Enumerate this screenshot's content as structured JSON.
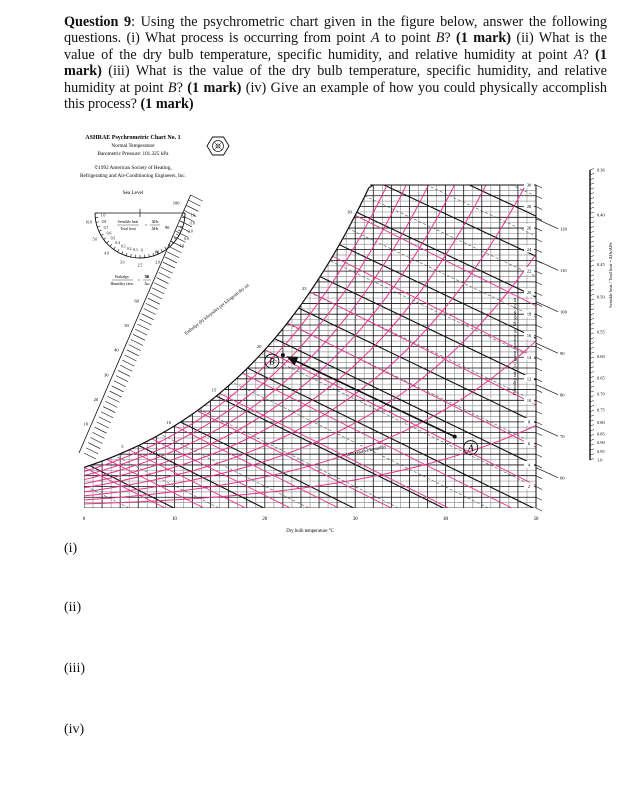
{
  "question": {
    "number_label": "Question 9",
    "intro": ": Using the psychrometric chart given in the figure below, answer the following questions. ",
    "parts": [
      {
        "id": "i",
        "prefix": "(i) ",
        "text_before": "What process is occurring from point ",
        "var1": "A",
        "text_mid": " to point ",
        "var2": "B",
        "text_after": "? ",
        "marks": "(1 mark)"
      },
      {
        "id": "ii",
        "prefix": " (ii) ",
        "text_before": "What is the value of the dry bulb temperature, specific humidity, and relative humidity at point ",
        "var1": "A",
        "text_after": "? ",
        "marks": "(1 mark)"
      },
      {
        "id": "iii",
        "prefix": " (iii) ",
        "text_before": "What is the value of the dry bulb temperature, specific humidity, and relative humidity at point ",
        "var1": "B",
        "text_after": "? ",
        "marks": "(1 mark)"
      },
      {
        "id": "iv",
        "prefix": " (iv) ",
        "text_before": "Give an example of how you could physically accomplish this process? ",
        "marks": "(1 mark)"
      }
    ]
  },
  "chart_header": {
    "title": "ASHRAE Psychrometric Chart No. 1",
    "subtitle1": "Normal Temperature",
    "subtitle2": "Barometric Pressure: 101.325 kPa",
    "copyright1": "©1992 American Society of Heating,",
    "copyright2": "Refrigerating and Air-Conditioning Engineers, Inc.",
    "sea_level": "Sea Level"
  },
  "protractor": {
    "shr_label_num": "Sensible heat",
    "shr_label_den": "Total heat",
    "shr_eq_num": "ΔHs",
    "shr_eq_den": "ΔHт",
    "ehr_label_num": "Enthalpy",
    "ehr_label_den": "Humidity ratio",
    "ehr_eq_num": "Δh",
    "ehr_eq_den": "Δω",
    "left_ticks": [
      "1.0",
      "0.8",
      "0.7",
      "0.6",
      "0.5",
      "0.4",
      "0.3",
      "0.2",
      "0.1",
      "0"
    ],
    "right_ticks": [
      "1.0",
      "-5.0",
      "-2.0",
      "0.0",
      "1.0"
    ],
    "outer_ticks": [
      "10.0",
      "5.0",
      "4.0",
      "3.0",
      "2.5",
      "2.0"
    ]
  },
  "chart_data": {
    "type": "psychrometric",
    "title": "ASHRAE Psychrometric Chart No. 1",
    "xlabel": "Dry bulb temperature °C",
    "ylabel": "Humidity ratio (ω) grams moisture per kilogram dry air",
    "x_ticks": [
      0,
      10,
      20,
      30,
      40,
      50
    ],
    "xlim": [
      0,
      50
    ],
    "y_ticks_right": [
      2,
      4,
      6,
      8,
      10,
      12,
      14,
      16,
      18,
      20,
      22,
      24,
      26,
      28,
      30
    ],
    "ylim": [
      0,
      30
    ],
    "enthalpy_label": "Enthalpy (h) kilojoules per kilogram dry air",
    "enthalpy_ticks_left": [
      10,
      20,
      30,
      40,
      50,
      60,
      70,
      80,
      90,
      100
    ],
    "enthalpy_ticks_right": [
      60,
      70,
      80,
      90,
      100,
      110,
      120
    ],
    "wet_bulb_label": "Saturation temperature °C",
    "wet_bulb_ticks": [
      5,
      10,
      15,
      20,
      25,
      30
    ],
    "rh_curves_percent": [
      10,
      20,
      30,
      40,
      50,
      60,
      70,
      80,
      90,
      100
    ],
    "rh_label": "10% relative humidity",
    "specific_volume_label": "cubic meter per kilogram dry air",
    "specific_volume_ticks": [
      0.78,
      0.8,
      0.82,
      0.84,
      0.86,
      0.88,
      0.9,
      0.92,
      0.94
    ],
    "shr_scale_label": "Sensible heat / Total heat = ΔHs/ΔHт",
    "shr_scale_ticks": [
      "0.36",
      "0.40",
      "0.45",
      "0.50",
      "0.55",
      "0.60",
      "0.65",
      "0.70",
      "0.75",
      "0.80",
      "0.85",
      "0.90",
      "0.95",
      "1.0"
    ],
    "points": [
      {
        "name": "A",
        "dry_bulb_c": 43,
        "humidity_ratio_gkg": 5.7
      },
      {
        "name": "B",
        "dry_bulb_c": 22,
        "humidity_ratio_gkg": 14.2
      }
    ],
    "process_arrow": {
      "from": "A",
      "to": "B"
    },
    "grid": true
  },
  "answers": {
    "labels": [
      "(i)",
      "(ii)",
      "(iii)",
      "(iv)"
    ]
  },
  "colors": {
    "rh_lines": "#e8338a",
    "grid": "#111111",
    "grid_light": "#9a9a9a",
    "text": "#111111"
  }
}
